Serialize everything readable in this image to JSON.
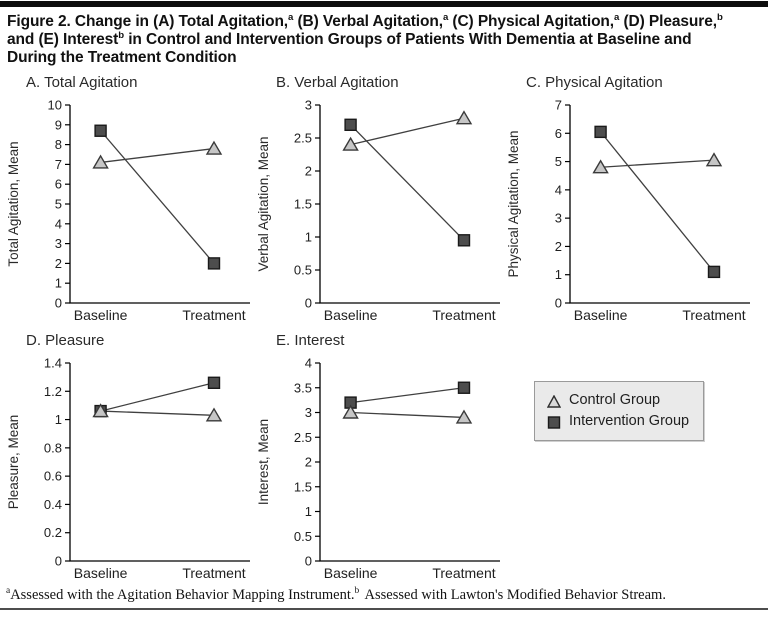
{
  "page": {
    "title_lines": [
      [
        {
          "t": "Figure 2. Change in (A) Total Agitation,"
        },
        {
          "t": "a",
          "sup": true
        },
        {
          "t": " (B) Verbal Agitation,"
        },
        {
          "t": "a",
          "sup": true
        },
        {
          "t": " (C) Physical Agitation,"
        },
        {
          "t": "a",
          "sup": true
        },
        {
          "t": " (D) Pleasure,"
        },
        {
          "t": "b",
          "sup": true
        }
      ],
      [
        {
          "t": "and (E) Interest"
        },
        {
          "t": "b",
          "sup": true
        },
        {
          "t": " in Control and Intervention Groups of Patients With Dementia at Baseline and"
        }
      ],
      [
        {
          "t": "During the Treatment Condition"
        }
      ]
    ],
    "footnote_parts": [
      {
        "t": "a",
        "sup": true
      },
      {
        "t": "Assessed with the Agitation Behavior Mapping Instrument."
      },
      {
        "t": "b",
        "sup": true,
        "gap": true
      },
      {
        "t": "Assessed with Lawton's Modified Behavior Stream."
      }
    ]
  },
  "legend": {
    "items": [
      {
        "label": "Control Group",
        "marker": "triangle"
      },
      {
        "label": "Intervention Group",
        "marker": "square"
      }
    ]
  },
  "colors": {
    "control_fill": "#c6c6c6",
    "control_stroke": "#3a3a3a",
    "intervention_fill": "#4d4d4d",
    "intervention_stroke": "#1a1a1a",
    "series_line": "#404040",
    "axis": "#000000",
    "text": "#2a2a2a",
    "legend_bg": "#eaeaea",
    "legend_border": "#9a9a9a"
  },
  "chart_data": [
    {
      "type": "line",
      "id": "A",
      "title": "A. Total Agitation",
      "xlabel": "",
      "ylabel": "Total Agitation, Mean",
      "categories": [
        "Baseline",
        "Treatment"
      ],
      "ylim": [
        0,
        10
      ],
      "yticks": [
        0,
        1,
        2,
        3,
        4,
        5,
        6,
        7,
        8,
        9,
        10
      ],
      "ytick_labels": [
        "0",
        "1",
        "2",
        "3",
        "4",
        "5",
        "6",
        "7",
        "8",
        "9",
        "10"
      ],
      "grid": false,
      "series": [
        {
          "name": "Control Group",
          "marker": "triangle",
          "values": [
            7.1,
            7.8
          ]
        },
        {
          "name": "Intervention Group",
          "marker": "square",
          "values": [
            8.7,
            2.0
          ]
        }
      ]
    },
    {
      "type": "line",
      "id": "B",
      "title": "B. Verbal Agitation",
      "xlabel": "",
      "ylabel": "Verbal Agitation, Mean",
      "categories": [
        "Baseline",
        "Treatment"
      ],
      "ylim": [
        0,
        3
      ],
      "yticks": [
        0,
        0.5,
        1,
        1.5,
        2,
        2.5,
        3
      ],
      "ytick_labels": [
        "0",
        "0.5",
        "1",
        "1.5",
        "2",
        "2.5",
        "3"
      ],
      "grid": false,
      "series": [
        {
          "name": "Control Group",
          "marker": "triangle",
          "values": [
            2.4,
            2.8
          ]
        },
        {
          "name": "Intervention Group",
          "marker": "square",
          "values": [
            2.7,
            0.95
          ]
        }
      ]
    },
    {
      "type": "line",
      "id": "C",
      "title": "C. Physical Agitation",
      "xlabel": "",
      "ylabel": "Physical Agitation, Mean",
      "categories": [
        "Baseline",
        "Treatment"
      ],
      "ylim": [
        0,
        7
      ],
      "yticks": [
        0,
        1,
        2,
        3,
        4,
        5,
        6,
        7
      ],
      "ytick_labels": [
        "0",
        "1",
        "2",
        "3",
        "4",
        "5",
        "6",
        "7"
      ],
      "grid": false,
      "series": [
        {
          "name": "Control Group",
          "marker": "triangle",
          "values": [
            4.8,
            5.05
          ]
        },
        {
          "name": "Intervention Group",
          "marker": "square",
          "values": [
            6.05,
            1.1
          ]
        }
      ]
    },
    {
      "type": "line",
      "id": "D",
      "title": "D. Pleasure",
      "xlabel": "",
      "ylabel": "Pleasure, Mean",
      "categories": [
        "Baseline",
        "Treatment"
      ],
      "ylim": [
        0,
        1.4
      ],
      "yticks": [
        0,
        0.2,
        0.4,
        0.6,
        0.8,
        1,
        1.2,
        1.4
      ],
      "ytick_labels": [
        "0",
        "0.2",
        "0.4",
        "0.6",
        "0.8",
        "1",
        "1.2",
        "1.4"
      ],
      "grid": false,
      "series": [
        {
          "name": "Control Group",
          "marker": "triangle",
          "values": [
            1.06,
            1.03
          ]
        },
        {
          "name": "Intervention Group",
          "marker": "square",
          "values": [
            1.06,
            1.26
          ]
        }
      ]
    },
    {
      "type": "line",
      "id": "E",
      "title": "E. Interest",
      "xlabel": "",
      "ylabel": "Interest, Mean",
      "categories": [
        "Baseline",
        "Treatment"
      ],
      "ylim": [
        0,
        4
      ],
      "yticks": [
        0,
        0.5,
        1,
        1.5,
        2,
        2.5,
        3,
        3.5,
        4
      ],
      "ytick_labels": [
        "0",
        "0.5",
        "1",
        "1.5",
        "2",
        "2.5",
        "3",
        "3.5",
        "4"
      ],
      "grid": false,
      "series": [
        {
          "name": "Control Group",
          "marker": "triangle",
          "values": [
            3.0,
            2.9
          ]
        },
        {
          "name": "Intervention Group",
          "marker": "square",
          "values": [
            3.2,
            3.5
          ]
        }
      ]
    }
  ]
}
